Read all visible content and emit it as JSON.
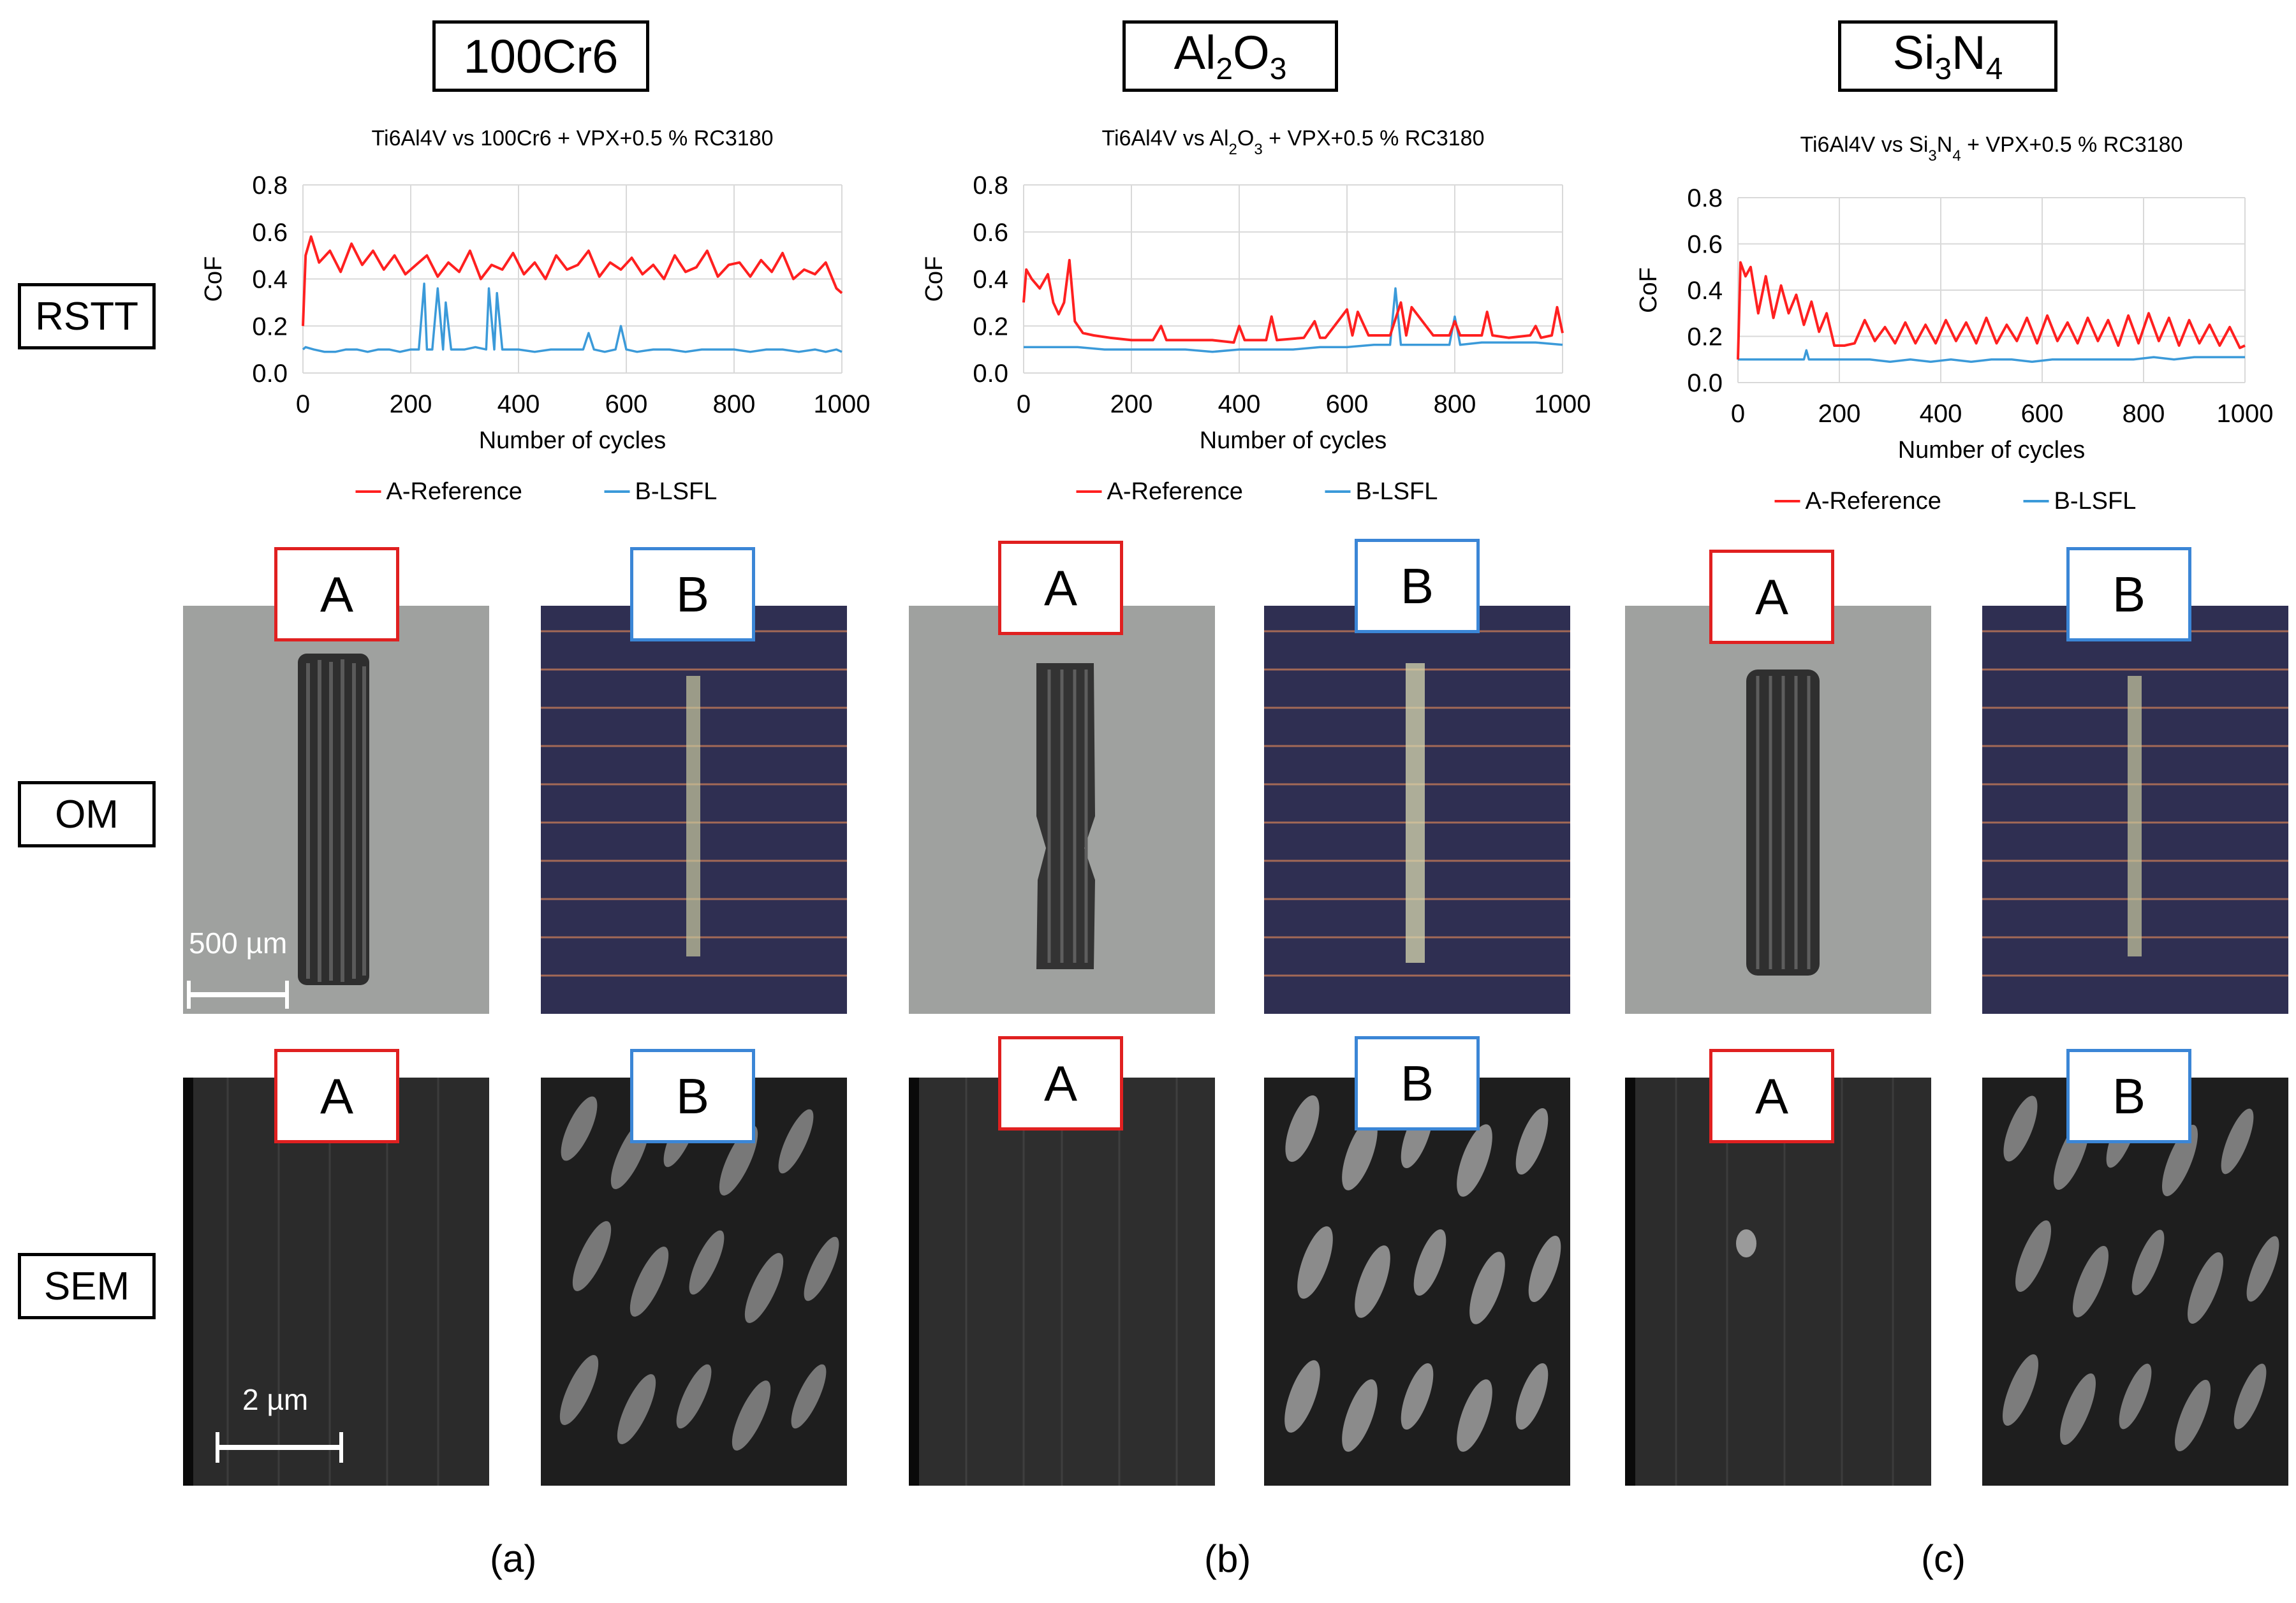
{
  "materials": {
    "m1": "100Cr6",
    "m2_base": "Al",
    "m2_sub1": "2",
    "m2_mid": "O",
    "m2_sub2": "3",
    "m3_base": "Si",
    "m3_sub1": "3",
    "m3_mid": "N",
    "m3_sub2": "4"
  },
  "rows": {
    "rstt": "RSTT",
    "om": "OM",
    "sem": "SEM"
  },
  "sample_labels": {
    "a": "A",
    "b": "B"
  },
  "scale_bars": {
    "om": "500 µm",
    "sem": "2 µm"
  },
  "subfigure_labels": [
    "(a)",
    "(b)",
    "(c)"
  ],
  "colors": {
    "reference": "#ff2020",
    "lsfl": "#3b9ad9"
  },
  "chart_data": [
    {
      "type": "line",
      "title": "Ti6Al4V vs 100Cr6 + VPX+0.5 % RC3180",
      "xlabel": "Number of cycles",
      "ylabel": "CoF",
      "xlim": [
        0,
        1000
      ],
      "ylim": [
        0,
        0.8
      ],
      "xticks": [
        "0",
        "200",
        "400",
        "600",
        "800",
        "1000"
      ],
      "yticks": [
        "0.0",
        "0.2",
        "0.4",
        "0.6",
        "0.8"
      ],
      "grid": true,
      "legend": "bottom",
      "series": [
        {
          "name": "A-Reference",
          "color": "#ff2020",
          "x": [
            0,
            5,
            15,
            30,
            50,
            70,
            90,
            110,
            130,
            150,
            170,
            190,
            210,
            230,
            250,
            270,
            290,
            310,
            330,
            350,
            370,
            390,
            410,
            430,
            450,
            470,
            490,
            510,
            530,
            550,
            570,
            590,
            610,
            630,
            650,
            670,
            690,
            710,
            730,
            750,
            770,
            790,
            810,
            830,
            850,
            870,
            890,
            910,
            930,
            950,
            970,
            990,
            1000
          ],
          "values": [
            0.2,
            0.5,
            0.58,
            0.47,
            0.52,
            0.43,
            0.55,
            0.46,
            0.52,
            0.44,
            0.5,
            0.42,
            0.46,
            0.5,
            0.41,
            0.47,
            0.43,
            0.52,
            0.4,
            0.46,
            0.44,
            0.51,
            0.42,
            0.47,
            0.4,
            0.5,
            0.44,
            0.46,
            0.52,
            0.41,
            0.47,
            0.44,
            0.49,
            0.42,
            0.46,
            0.4,
            0.5,
            0.43,
            0.45,
            0.52,
            0.41,
            0.46,
            0.47,
            0.41,
            0.48,
            0.43,
            0.51,
            0.4,
            0.44,
            0.42,
            0.47,
            0.36,
            0.34
          ]
        },
        {
          "name": "B-LSFL",
          "color": "#3b9ad9",
          "x": [
            0,
            5,
            20,
            40,
            60,
            80,
            100,
            120,
            140,
            160,
            180,
            200,
            215,
            225,
            230,
            240,
            250,
            260,
            265,
            275,
            300,
            320,
            340,
            345,
            355,
            360,
            370,
            380,
            400,
            430,
            460,
            490,
            520,
            530,
            540,
            560,
            580,
            590,
            600,
            620,
            650,
            680,
            710,
            740,
            770,
            800,
            830,
            860,
            890,
            920,
            950,
            970,
            990,
            1000
          ],
          "values": [
            0.1,
            0.11,
            0.1,
            0.09,
            0.09,
            0.1,
            0.1,
            0.09,
            0.1,
            0.1,
            0.09,
            0.1,
            0.1,
            0.38,
            0.1,
            0.1,
            0.36,
            0.1,
            0.3,
            0.1,
            0.1,
            0.11,
            0.1,
            0.36,
            0.1,
            0.34,
            0.1,
            0.1,
            0.1,
            0.09,
            0.1,
            0.1,
            0.1,
            0.17,
            0.1,
            0.09,
            0.1,
            0.2,
            0.1,
            0.09,
            0.1,
            0.1,
            0.09,
            0.1,
            0.1,
            0.1,
            0.09,
            0.1,
            0.1,
            0.09,
            0.1,
            0.09,
            0.1,
            0.09
          ]
        }
      ]
    },
    {
      "type": "line",
      "title": "Ti6Al4V vs Al2O3 + VPX+0.5 % RC3180",
      "title_parts": [
        "Ti6Al4V vs Al",
        "2",
        "O",
        "3",
        " + VPX+0.5 % RC3180"
      ],
      "xlabel": "Number of cycles",
      "ylabel": "CoF",
      "xlim": [
        0,
        1000
      ],
      "ylim": [
        0,
        0.8
      ],
      "xticks": [
        "0",
        "200",
        "400",
        "600",
        "800",
        "1000"
      ],
      "yticks": [
        "0.0",
        "0.2",
        "0.4",
        "0.6",
        "0.8"
      ],
      "grid": true,
      "legend": "bottom",
      "series": [
        {
          "name": "A-Reference",
          "color": "#ff2020",
          "x": [
            0,
            5,
            15,
            30,
            45,
            55,
            65,
            75,
            85,
            95,
            110,
            130,
            160,
            200,
            240,
            255,
            265,
            300,
            350,
            390,
            400,
            410,
            450,
            460,
            470,
            520,
            540,
            550,
            560,
            600,
            610,
            620,
            640,
            680,
            700,
            710,
            720,
            760,
            790,
            800,
            810,
            850,
            860,
            870,
            900,
            940,
            950,
            960,
            980,
            990,
            1000
          ],
          "values": [
            0.3,
            0.44,
            0.4,
            0.36,
            0.42,
            0.3,
            0.25,
            0.3,
            0.48,
            0.22,
            0.17,
            0.16,
            0.15,
            0.14,
            0.14,
            0.2,
            0.14,
            0.14,
            0.14,
            0.13,
            0.2,
            0.14,
            0.14,
            0.24,
            0.14,
            0.15,
            0.22,
            0.15,
            0.15,
            0.27,
            0.16,
            0.26,
            0.16,
            0.16,
            0.3,
            0.16,
            0.28,
            0.16,
            0.16,
            0.22,
            0.16,
            0.16,
            0.26,
            0.16,
            0.15,
            0.16,
            0.2,
            0.15,
            0.16,
            0.28,
            0.17
          ]
        },
        {
          "name": "B-LSFL",
          "color": "#3b9ad9",
          "x": [
            0,
            50,
            100,
            150,
            200,
            250,
            300,
            350,
            400,
            450,
            500,
            550,
            600,
            650,
            680,
            690,
            700,
            750,
            790,
            800,
            810,
            850,
            900,
            950,
            1000
          ],
          "values": [
            0.11,
            0.11,
            0.11,
            0.1,
            0.1,
            0.1,
            0.1,
            0.09,
            0.1,
            0.1,
            0.1,
            0.11,
            0.11,
            0.12,
            0.12,
            0.36,
            0.12,
            0.12,
            0.12,
            0.24,
            0.12,
            0.13,
            0.13,
            0.13,
            0.12
          ]
        }
      ]
    },
    {
      "type": "line",
      "title": "Ti6Al4V vs Si3N4 + VPX+0.5 % RC3180",
      "title_parts": [
        "Ti6Al4V vs Si",
        "3",
        "N",
        "4",
        " + VPX+0.5 % RC3180"
      ],
      "xlabel": "Number of cycles",
      "ylabel": "CoF",
      "xlim": [
        0,
        1000
      ],
      "ylim": [
        0,
        0.8
      ],
      "xticks": [
        "0",
        "200",
        "400",
        "600",
        "800",
        "1000"
      ],
      "yticks": [
        "0.0",
        "0.2",
        "0.4",
        "0.6",
        "0.8"
      ],
      "grid": true,
      "legend": "bottom",
      "series": [
        {
          "name": "A-Reference",
          "color": "#ff2020",
          "x": [
            0,
            5,
            15,
            25,
            40,
            55,
            70,
            85,
            100,
            115,
            130,
            145,
            160,
            175,
            190,
            210,
            230,
            250,
            270,
            290,
            310,
            330,
            350,
            370,
            390,
            410,
            430,
            450,
            470,
            490,
            510,
            530,
            550,
            570,
            590,
            610,
            630,
            650,
            670,
            690,
            710,
            730,
            750,
            770,
            790,
            810,
            830,
            850,
            870,
            890,
            910,
            930,
            950,
            970,
            990,
            1000
          ],
          "values": [
            0.1,
            0.52,
            0.46,
            0.5,
            0.3,
            0.46,
            0.28,
            0.42,
            0.3,
            0.38,
            0.25,
            0.35,
            0.22,
            0.3,
            0.16,
            0.16,
            0.17,
            0.27,
            0.18,
            0.24,
            0.17,
            0.26,
            0.17,
            0.25,
            0.17,
            0.27,
            0.18,
            0.26,
            0.17,
            0.28,
            0.17,
            0.25,
            0.18,
            0.28,
            0.17,
            0.29,
            0.18,
            0.26,
            0.17,
            0.28,
            0.18,
            0.27,
            0.16,
            0.29,
            0.17,
            0.3,
            0.18,
            0.28,
            0.16,
            0.27,
            0.17,
            0.25,
            0.16,
            0.24,
            0.15,
            0.16
          ]
        },
        {
          "name": "B-LSFL",
          "color": "#3b9ad9",
          "x": [
            0,
            20,
            60,
            100,
            130,
            135,
            140,
            180,
            220,
            260,
            300,
            340,
            380,
            420,
            460,
            500,
            540,
            580,
            620,
            660,
            700,
            740,
            780,
            820,
            860,
            900,
            940,
            980,
            1000
          ],
          "values": [
            0.1,
            0.1,
            0.1,
            0.1,
            0.1,
            0.14,
            0.1,
            0.1,
            0.1,
            0.1,
            0.09,
            0.1,
            0.09,
            0.1,
            0.09,
            0.1,
            0.1,
            0.09,
            0.1,
            0.1,
            0.1,
            0.1,
            0.1,
            0.11,
            0.1,
            0.11,
            0.11,
            0.11,
            0.11
          ]
        }
      ]
    }
  ]
}
